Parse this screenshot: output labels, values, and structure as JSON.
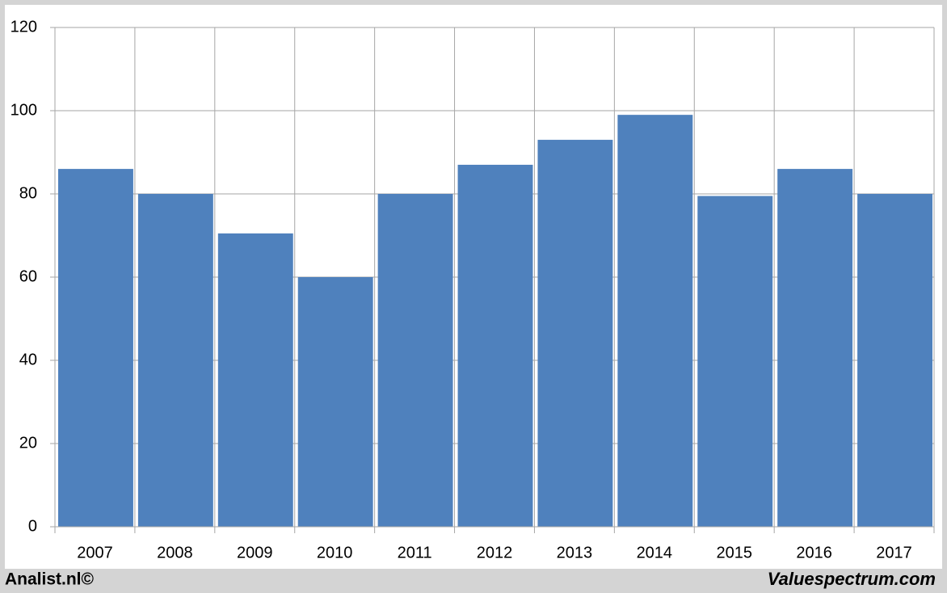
{
  "chart_data": {
    "type": "bar",
    "categories": [
      "2007",
      "2008",
      "2009",
      "2010",
      "2011",
      "2012",
      "2013",
      "2014",
      "2015",
      "2016",
      "2017"
    ],
    "values": [
      86,
      80,
      70.5,
      60,
      80,
      87,
      93,
      99,
      79.5,
      86,
      80
    ],
    "color": "#4f81bd",
    "ylim": [
      0,
      120
    ],
    "yticks": [
      0,
      20,
      40,
      60,
      80,
      100,
      120
    ],
    "grid": true,
    "footer_left": "Analist.nl©",
    "footer_right": "Valuespectrum.com"
  }
}
